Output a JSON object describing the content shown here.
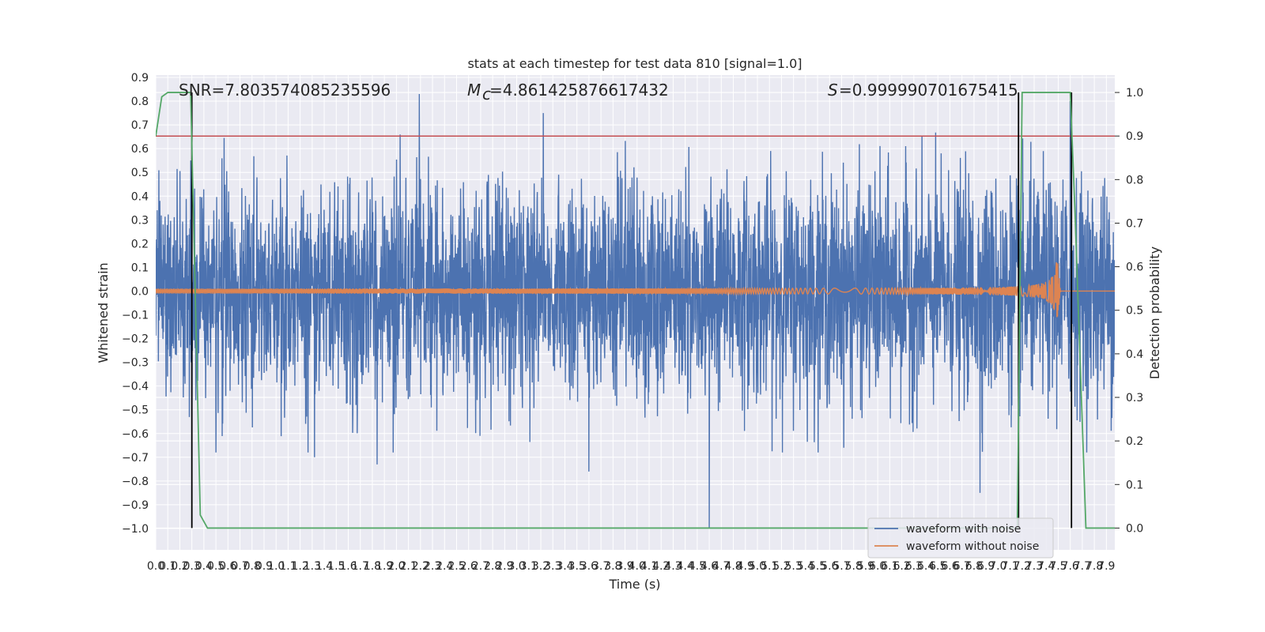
{
  "chart_data": {
    "type": "line",
    "title": "stats at each timestep for test data 810 [signal=1.0]",
    "xlabel": "Time (s)",
    "ylabel": "Whitened strain",
    "y2label": "Detection probability",
    "xlim": [
      0.0,
      7.97
    ],
    "ylim": [
      -1.09,
      0.91
    ],
    "y2lim": [
      -0.05,
      1.04
    ],
    "grid": true,
    "legend_position": "lower-right",
    "x_ticks": [
      "0.0",
      "0.1",
      "0.2",
      "0.3",
      "0.4",
      "0.5",
      "0.6",
      "0.7",
      "0.8",
      "0.9",
      "1.0",
      "1.1",
      "1.2",
      "1.3",
      "1.4",
      "1.5",
      "1.6",
      "1.7",
      "1.8",
      "1.9",
      "2.0",
      "2.1",
      "2.2",
      "2.3",
      "2.4",
      "2.5",
      "2.6",
      "2.7",
      "2.8",
      "2.9",
      "3.0",
      "3.1",
      "3.2",
      "3.3",
      "3.4",
      "3.5",
      "3.6",
      "3.7",
      "3.8",
      "3.9",
      "4.0",
      "4.1",
      "4.2",
      "4.3",
      "4.4",
      "4.5",
      "4.6",
      "4.7",
      "4.8",
      "4.9",
      "5.0",
      "5.1",
      "5.2",
      "5.3",
      "5.4",
      "5.5",
      "5.6",
      "5.7",
      "5.8",
      "5.9",
      "6.0",
      "6.1",
      "6.2",
      "6.3",
      "6.4",
      "6.5",
      "6.6",
      "6.7",
      "6.8",
      "6.9",
      "7.0",
      "7.1",
      "7.2",
      "7.3",
      "7.4",
      "7.5",
      "7.6",
      "7.7",
      "7.8",
      "7.9"
    ],
    "y_ticks": [
      "0.9",
      "0.8",
      "0.7",
      "0.6",
      "0.5",
      "0.4",
      "0.3",
      "0.2",
      "0.1",
      "0.0",
      "−0.1",
      "−0.2",
      "−0.3",
      "−0.4",
      "−0.5",
      "−0.6",
      "−0.7",
      "−0.8",
      "−0.9",
      "−1.0"
    ],
    "y2_ticks": [
      "1.0",
      "0.9",
      "0.8",
      "0.7",
      "0.6",
      "0.5",
      "0.4",
      "0.3",
      "0.2",
      "0.1",
      "0.0"
    ],
    "annotations": {
      "snr": "SNR=7.803574085235596",
      "mc": "=4.861425876617432",
      "s": "=0.999990701675415"
    },
    "threshold": {
      "value": 0.9,
      "color": "#c44e52"
    },
    "vertical_lines": [
      0.3,
      7.17,
      7.61
    ],
    "series": [
      {
        "name": "waveform with noise",
        "color": "#4c72b0",
        "typical_amplitude": 0.45,
        "peak_values": [
          {
            "x": 0.29,
            "y": 0.55
          },
          {
            "x": 0.3,
            "y": -0.53
          },
          {
            "x": 2.19,
            "y": 0.83
          },
          {
            "x": 1.84,
            "y": -0.73
          },
          {
            "x": 3.22,
            "y": 0.75
          },
          {
            "x": 4.6,
            "y": -1.0
          },
          {
            "x": 3.6,
            "y": -0.76
          },
          {
            "x": 6.85,
            "y": -0.85
          },
          {
            "x": 7.6,
            "y": 0.8
          },
          {
            "x": 1.32,
            "y": -0.7
          }
        ]
      },
      {
        "name": "waveform without noise",
        "color": "#dd8452",
        "start_amplitude": 0.01,
        "peak_amplitude": 0.15,
        "merger_time": 7.49,
        "ringdown_end": 7.52
      },
      {
        "name": "",
        "color": "#55a868",
        "axis": "right",
        "x": [
          0.0,
          0.05,
          0.1,
          0.2,
          0.29,
          0.37,
          0.43,
          7.16,
          7.2,
          7.6,
          7.64,
          7.73,
          7.97
        ],
        "values": [
          0.9,
          0.99,
          1.0,
          1.0,
          1.0,
          0.03,
          0.0,
          0.0,
          1.0,
          1.0,
          0.72,
          0.0,
          0.0
        ]
      }
    ]
  }
}
